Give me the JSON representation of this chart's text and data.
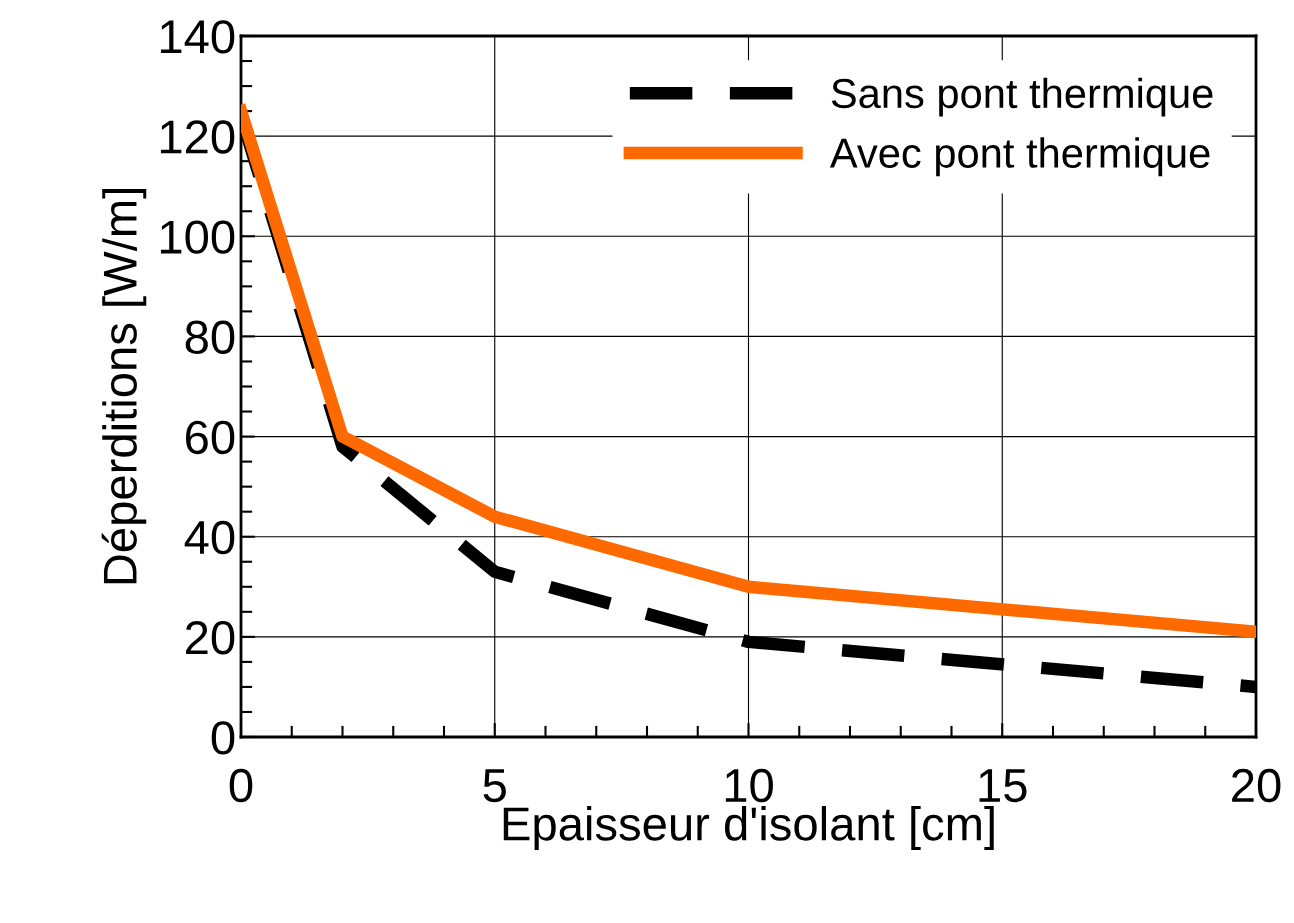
{
  "chart_data": {
    "type": "line",
    "xlabel": "Epaisseur d'isolant [cm]",
    "ylabel": "Déperditions [W/m]",
    "x": [
      0,
      2,
      5,
      10,
      20
    ],
    "series": [
      {
        "name": "Sans pont thermique",
        "color": "#000000",
        "values": [
          124,
          58,
          33,
          19,
          10
        ],
        "line_style": "dashed"
      },
      {
        "name": "Avec pont thermique",
        "color": "#ff6a00",
        "values": [
          125,
          60,
          44,
          30,
          21
        ],
        "line_style": "solid"
      }
    ],
    "xlim": [
      0,
      20
    ],
    "xticks": [
      0,
      5,
      10,
      15,
      20
    ],
    "ylim": [
      0,
      140
    ],
    "yticks": [
      0,
      20,
      40,
      60,
      80,
      100,
      120,
      140
    ],
    "grid": true,
    "legend": "top right",
    "marker": "none"
  }
}
